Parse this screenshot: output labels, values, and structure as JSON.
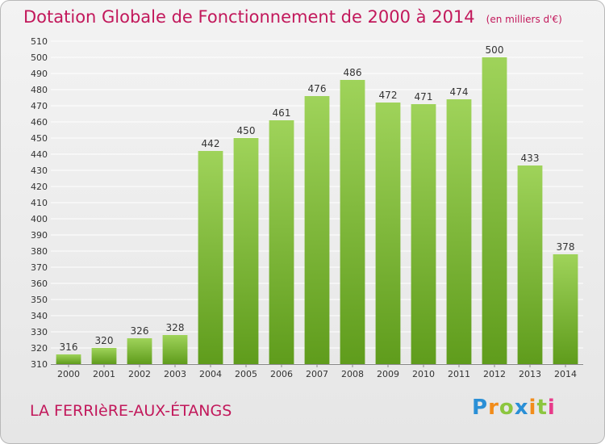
{
  "title": "Dotation Globale de Fonctionnement de 2000 à 2014",
  "units": "(en milliers d'€)",
  "commune": "LA FERRIèRE-AUX-ÉTANGS",
  "logo": {
    "letters": [
      "P",
      "r",
      "o",
      "x",
      "i",
      "t",
      "i"
    ],
    "colors": [
      "#2a8fd6",
      "#f28c1a",
      "#8cc63f",
      "#2a8fd6",
      "#f28c1a",
      "#8cc63f",
      "#e83b8a"
    ]
  },
  "colors": {
    "title": "#c2185b",
    "bar_top": "#9fd35a",
    "bar_bottom": "#5f9c1c",
    "grid": "#ffffff",
    "axis_text": "#333333"
  },
  "chart_data": {
    "type": "bar",
    "categories": [
      "2000",
      "2001",
      "2002",
      "2003",
      "2004",
      "2005",
      "2006",
      "2007",
      "2008",
      "2009",
      "2010",
      "2011",
      "2012",
      "2013",
      "2014"
    ],
    "values": [
      316,
      320,
      326,
      328,
      442,
      450,
      461,
      476,
      486,
      472,
      471,
      474,
      500,
      433,
      378
    ],
    "title": "Dotation Globale de Fonctionnement de 2000 à 2014",
    "ylim": [
      310,
      510
    ],
    "yticks": [
      310,
      320,
      330,
      340,
      350,
      360,
      370,
      380,
      390,
      400,
      410,
      420,
      430,
      440,
      450,
      460,
      470,
      480,
      490,
      500,
      510
    ],
    "grid": true
  }
}
